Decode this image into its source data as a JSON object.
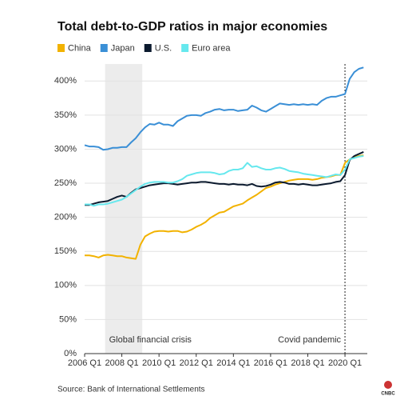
{
  "chart_data": {
    "type": "line",
    "title": "Total debt-to-GDP ratios in major economies",
    "source": "Source: Bank of International Settlements",
    "logo": "CNBC",
    "x": [
      2006,
      2006.25,
      2006.5,
      2006.75,
      2007,
      2007.25,
      2007.5,
      2007.75,
      2008,
      2008.25,
      2008.5,
      2008.75,
      2009,
      2009.25,
      2009.5,
      2009.75,
      2010,
      2010.25,
      2010.5,
      2010.75,
      2011,
      2011.25,
      2011.5,
      2011.75,
      2012,
      2012.25,
      2012.5,
      2012.75,
      2013,
      2013.25,
      2013.5,
      2013.75,
      2014,
      2014.25,
      2014.5,
      2014.75,
      2015,
      2015.25,
      2015.5,
      2015.75,
      2016,
      2016.25,
      2016.5,
      2016.75,
      2017,
      2017.25,
      2017.5,
      2017.75,
      2018,
      2018.25,
      2018.5,
      2018.75,
      2019,
      2019.25,
      2019.5,
      2019.75,
      2020,
      2020.25,
      2020.5,
      2020.75,
      2021
    ],
    "series": [
      {
        "name": "China",
        "color": "#f2b200",
        "values": [
          144,
          144,
          143,
          141,
          144,
          145,
          144,
          143,
          143,
          141,
          140,
          139,
          160,
          172,
          176,
          179,
          180,
          180,
          179,
          180,
          180,
          178,
          179,
          182,
          186,
          189,
          193,
          199,
          203,
          207,
          208,
          212,
          216,
          218,
          220,
          225,
          229,
          233,
          238,
          243,
          245,
          248,
          250,
          252,
          254,
          255,
          256,
          256,
          256,
          255,
          256,
          258,
          259,
          260,
          262,
          262,
          280,
          285,
          288,
          290,
          291
        ]
      },
      {
        "name": "Japan",
        "color": "#3a8fd6",
        "values": [
          306,
          304,
          304,
          303,
          299,
          300,
          302,
          302,
          303,
          303,
          310,
          316,
          325,
          332,
          337,
          336,
          339,
          336,
          336,
          334,
          341,
          345,
          349,
          350,
          350,
          349,
          353,
          355,
          358,
          359,
          357,
          358,
          358,
          356,
          357,
          358,
          364,
          361,
          357,
          355,
          359,
          363,
          367,
          366,
          365,
          366,
          365,
          366,
          365,
          366,
          365,
          371,
          375,
          377,
          377,
          379,
          381,
          403,
          413,
          418,
          420
        ]
      },
      {
        "name": "U.S.",
        "color": "#0b1a2e",
        "values": [
          218,
          218,
          220,
          222,
          223,
          224,
          227,
          230,
          232,
          230,
          236,
          241,
          243,
          245,
          247,
          248,
          249,
          250,
          250,
          249,
          248,
          249,
          250,
          251,
          251,
          252,
          252,
          251,
          250,
          249,
          249,
          248,
          249,
          248,
          248,
          247,
          249,
          246,
          245,
          246,
          248,
          251,
          252,
          251,
          249,
          249,
          248,
          249,
          248,
          247,
          247,
          248,
          249,
          250,
          252,
          253,
          262,
          284,
          290,
          293,
          296
        ]
      },
      {
        "name": "Euro area",
        "color": "#66e8ee",
        "values": [
          219,
          219,
          217,
          219,
          219,
          220,
          222,
          224,
          226,
          230,
          235,
          240,
          245,
          249,
          251,
          252,
          252,
          252,
          251,
          251,
          253,
          256,
          261,
          263,
          265,
          266,
          266,
          266,
          265,
          263,
          264,
          268,
          270,
          270,
          272,
          280,
          274,
          275,
          272,
          270,
          270,
          272,
          273,
          271,
          268,
          267,
          266,
          264,
          263,
          262,
          261,
          260,
          259,
          261,
          263,
          262,
          270,
          285,
          287,
          289,
          290
        ]
      }
    ],
    "xlim": [
      2006,
      2021.2
    ],
    "xticks": [
      {
        "value": 2006,
        "label": "2006 Q1"
      },
      {
        "value": 2008,
        "label": "2008 Q1"
      },
      {
        "value": 2010,
        "label": "2010 Q1"
      },
      {
        "value": 2012,
        "label": "2012 Q1"
      },
      {
        "value": 2014,
        "label": "2014 Q1"
      },
      {
        "value": 2016,
        "label": "2016 Q1"
      },
      {
        "value": 2018,
        "label": "2018 Q1"
      },
      {
        "value": 2020,
        "label": "2020 Q1"
      }
    ],
    "ylim": [
      0,
      425
    ],
    "yticks": [
      {
        "value": 0,
        "label": "0%"
      },
      {
        "value": 50,
        "label": "50%"
      },
      {
        "value": 100,
        "label": "100%"
      },
      {
        "value": 150,
        "label": "150%"
      },
      {
        "value": 200,
        "label": "200%"
      },
      {
        "value": 250,
        "label": "250%"
      },
      {
        "value": 300,
        "label": "300%"
      },
      {
        "value": 350,
        "label": "350%"
      },
      {
        "value": 400,
        "label": "400%"
      }
    ],
    "grid": true,
    "shaded": {
      "range": [
        2007.1,
        2009.1
      ],
      "label": "Global financial crisis"
    },
    "vline": {
      "value": 2020,
      "label": "Covid pandemic"
    }
  }
}
